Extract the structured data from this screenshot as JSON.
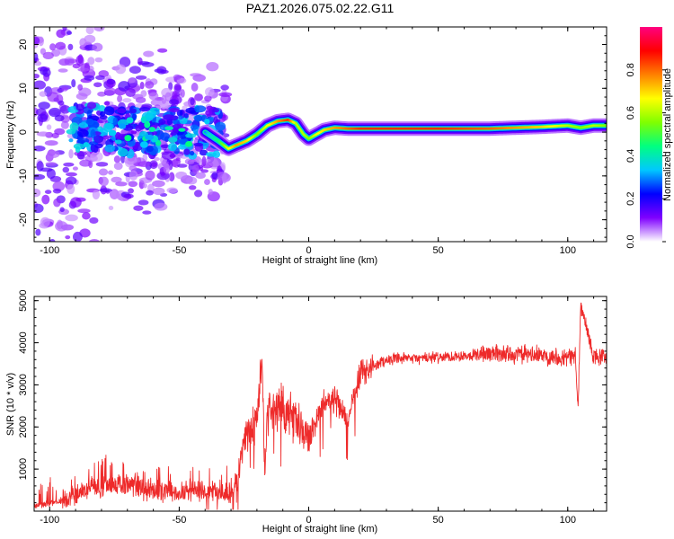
{
  "title": "PAZ1.2026.075.02.22.G11",
  "chart_data": [
    {
      "type": "heatmap",
      "title": "PAZ1.2026.075.02.22.G11",
      "xlabel": "Height of straight line (km)",
      "ylabel": "Frequency (Hz)",
      "xlim": [
        -106,
        115
      ],
      "ylim": [
        -25,
        24
      ],
      "xticks": [
        -100,
        -50,
        0,
        50,
        100
      ],
      "yticks": [
        -20,
        -10,
        0,
        10,
        20
      ],
      "colorbar": {
        "label": "Normalized spectral amplitude",
        "range": [
          0,
          1
        ],
        "ticks": [
          "0.0",
          "0.2",
          "0.4",
          "0.6",
          "0.8"
        ],
        "colors": [
          "#ffffff",
          "#7f00ff",
          "#0000ff",
          "#00c8ff",
          "#00ff80",
          "#80ff00",
          "#ffff00",
          "#ff8000",
          "#ff0000",
          "#ff0080"
        ]
      },
      "ridge": {
        "x": [
          -40,
          -35,
          -31,
          -28,
          -24,
          -20,
          -16,
          -12,
          -8,
          -5,
          -2,
          0,
          3,
          6,
          10,
          15,
          20,
          30,
          50,
          70,
          90,
          100,
          105,
          110,
          115
        ],
        "freq": [
          0,
          -2,
          -3.8,
          -3,
          -2,
          -0.5,
          1.5,
          2.5,
          2.8,
          2,
          -0.5,
          -1.5,
          -0.5,
          0.5,
          1.0,
          0.8,
          0.8,
          0.8,
          0.8,
          0.8,
          1.2,
          1.5,
          1.0,
          1.5,
          1.5
        ],
        "amplitude": [
          0.3,
          0.45,
          0.65,
          0.75,
          0.7,
          0.55,
          0.65,
          0.75,
          0.85,
          0.6,
          0.6,
          0.55,
          0.65,
          0.7,
          0.75,
          0.8,
          0.85,
          0.85,
          0.85,
          0.8,
          0.7,
          0.6,
          0.55,
          0.6,
          0.55
        ]
      },
      "noise_region": {
        "x_range": [
          -106,
          -40
        ],
        "freq_range": [
          -25,
          24
        ],
        "amplitude_range": [
          0.0,
          0.45
        ]
      }
    },
    {
      "type": "line",
      "title": "",
      "xlabel": "Height of straight line (km)",
      "ylabel": "SNR (10 * v/v)",
      "xlim": [
        -106,
        115
      ],
      "ylim": [
        0,
        5100
      ],
      "xticks": [
        -100,
        -50,
        0,
        50,
        100
      ],
      "yticks": [
        1000,
        2000,
        3000,
        4000,
        5000
      ],
      "color": "#ee2a2a",
      "series": [
        {
          "name": "SNR",
          "x": [
            -106,
            -95,
            -90,
            -85,
            -70,
            -60,
            -50,
            -40,
            -30,
            -27,
            -25,
            -20,
            -18,
            -17,
            -16,
            -15,
            -10,
            -5,
            0,
            5,
            10,
            15,
            20,
            25,
            30,
            50,
            70,
            90,
            100,
            103,
            104,
            105,
            110,
            115
          ],
          "y": [
            120,
            250,
            400,
            550,
            650,
            500,
            450,
            450,
            450,
            800,
            1700,
            2200,
            3600,
            900,
            2300,
            2400,
            2500,
            2100,
            1700,
            2500,
            2700,
            2100,
            3250,
            3450,
            3600,
            3650,
            3750,
            3700,
            3650,
            3700,
            2400,
            4900,
            3650,
            3650
          ]
        }
      ]
    }
  ]
}
